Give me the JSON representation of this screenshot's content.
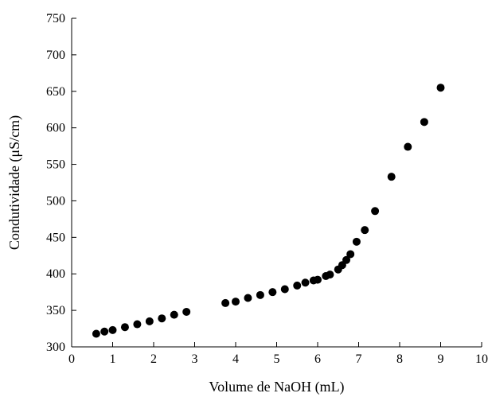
{
  "chart_data": {
    "type": "scatter",
    "xlabel": "Volume de NaOH (mL)",
    "ylabel": "Condutividade (μS/cm)",
    "xlim": [
      0,
      10
    ],
    "ylim": [
      300,
      750
    ],
    "x_ticks": [
      0,
      1,
      2,
      3,
      4,
      5,
      6,
      7,
      8,
      9,
      10
    ],
    "y_ticks": [
      300,
      350,
      400,
      450,
      500,
      550,
      600,
      650,
      700,
      750
    ],
    "x_tick_labels": [
      "0",
      "1",
      "2",
      "3",
      "4",
      "5",
      "6",
      "7",
      "8",
      "9",
      "10"
    ],
    "y_tick_labels": [
      "300",
      "350",
      "400",
      "450",
      "500",
      "550",
      "600",
      "650",
      "700",
      "750"
    ],
    "grid": false,
    "marker_color": "#000000",
    "series": [
      {
        "points": [
          {
            "x": 0.6,
            "y": 318
          },
          {
            "x": 0.8,
            "y": 321
          },
          {
            "x": 1.0,
            "y": 323
          },
          {
            "x": 1.3,
            "y": 327
          },
          {
            "x": 1.6,
            "y": 331
          },
          {
            "x": 1.9,
            "y": 335
          },
          {
            "x": 2.2,
            "y": 339
          },
          {
            "x": 2.5,
            "y": 344
          },
          {
            "x": 2.8,
            "y": 348
          },
          {
            "x": 3.75,
            "y": 360
          },
          {
            "x": 4.0,
            "y": 362
          },
          {
            "x": 4.3,
            "y": 367
          },
          {
            "x": 4.6,
            "y": 371
          },
          {
            "x": 4.9,
            "y": 375
          },
          {
            "x": 5.2,
            "y": 379
          },
          {
            "x": 5.5,
            "y": 384
          },
          {
            "x": 5.7,
            "y": 388
          },
          {
            "x": 5.9,
            "y": 391
          },
          {
            "x": 6.0,
            "y": 392
          },
          {
            "x": 6.2,
            "y": 397
          },
          {
            "x": 6.3,
            "y": 399
          },
          {
            "x": 6.5,
            "y": 406
          },
          {
            "x": 6.6,
            "y": 412
          },
          {
            "x": 6.7,
            "y": 419
          },
          {
            "x": 6.8,
            "y": 427
          },
          {
            "x": 6.95,
            "y": 444
          },
          {
            "x": 7.15,
            "y": 460
          },
          {
            "x": 7.4,
            "y": 486
          },
          {
            "x": 7.8,
            "y": 533
          },
          {
            "x": 8.2,
            "y": 574
          },
          {
            "x": 8.6,
            "y": 608
          },
          {
            "x": 9.0,
            "y": 655
          }
        ]
      }
    ]
  }
}
